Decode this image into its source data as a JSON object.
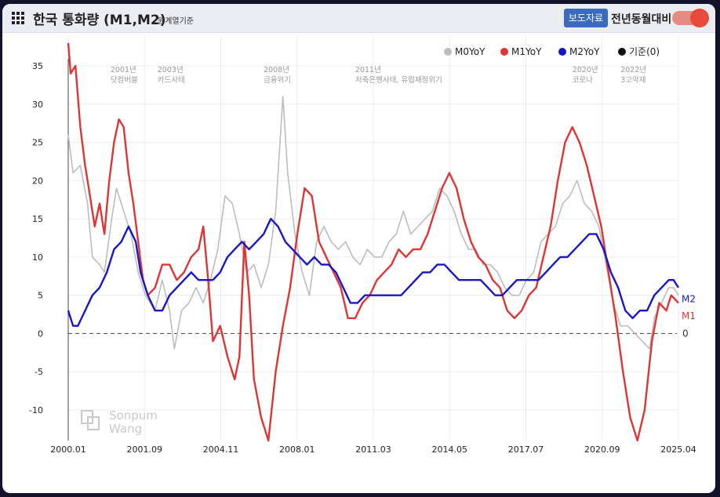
{
  "header": {
    "title": "한국 통화량 (M1,M2)",
    "subtitle": "원계열기준",
    "press_button": "보도자료",
    "toggle_label": "전년동월대비"
  },
  "watermark": {
    "line1": "Sonpum",
    "line2": "Wang"
  },
  "colors": {
    "M0": "#bdbdbd",
    "M1": "#e03434",
    "M2": "#1616c8",
    "baseline": "#555555"
  },
  "chart_data": {
    "type": "line",
    "x_ticks": [
      "2000.01",
      "2001.09",
      "2004.11",
      "2008.01",
      "2011.03",
      "2014.05",
      "2017.07",
      "2020.09",
      "2025.04"
    ],
    "y_ticks": [
      -10,
      -5,
      0,
      5,
      10,
      15,
      20,
      25,
      30,
      35
    ],
    "ylim": [
      -14,
      39
    ],
    "xlim": [
      2000.0,
      2025.3
    ],
    "legend": [
      "M0YoY",
      "M1YoY",
      "M2YoY",
      "기준(0)"
    ],
    "legend_position": "top-right",
    "end_labels": {
      "M1": "M1",
      "M2": "M2",
      "baseline": "0"
    },
    "events": [
      {
        "year": "2001년",
        "label": "닷컴버블",
        "x": 2001.75
      },
      {
        "year": "2003년",
        "label": "카드사태",
        "x": 2003.7
      },
      {
        "year": "2008년",
        "label": "금융위기",
        "x": 2008.1
      },
      {
        "year": "2011년",
        "label": "저축은행사태, 유럽재정위기",
        "x": 2011.9
      },
      {
        "year": "2020년",
        "label": "코로나",
        "x": 2020.9
      },
      {
        "year": "2022년",
        "label": "3고악재",
        "x": 2022.9
      }
    ],
    "series": [
      {
        "name": "M0YoY",
        "points": [
          [
            2000.0,
            26
          ],
          [
            2000.2,
            21
          ],
          [
            2000.5,
            22
          ],
          [
            2000.8,
            17
          ],
          [
            2001.0,
            10
          ],
          [
            2001.3,
            9
          ],
          [
            2001.5,
            8
          ],
          [
            2001.8,
            15
          ],
          [
            2002.0,
            19
          ],
          [
            2002.3,
            16
          ],
          [
            2002.6,
            13
          ],
          [
            2002.9,
            8
          ],
          [
            2003.2,
            5
          ],
          [
            2003.6,
            3
          ],
          [
            2003.9,
            7
          ],
          [
            2004.2,
            3
          ],
          [
            2004.4,
            -2
          ],
          [
            2004.7,
            3
          ],
          [
            2005.0,
            4
          ],
          [
            2005.3,
            6
          ],
          [
            2005.6,
            4
          ],
          [
            2005.9,
            7
          ],
          [
            2006.2,
            11
          ],
          [
            2006.5,
            18
          ],
          [
            2006.8,
            17
          ],
          [
            2007.1,
            13
          ],
          [
            2007.4,
            8
          ],
          [
            2007.7,
            9
          ],
          [
            2008.0,
            6
          ],
          [
            2008.3,
            9
          ],
          [
            2008.6,
            16
          ],
          [
            2008.9,
            31
          ],
          [
            2009.1,
            21
          ],
          [
            2009.4,
            13
          ],
          [
            2009.7,
            8
          ],
          [
            2010.0,
            5
          ],
          [
            2010.3,
            12
          ],
          [
            2010.6,
            14
          ],
          [
            2010.9,
            12
          ],
          [
            2011.2,
            11
          ],
          [
            2011.5,
            12
          ],
          [
            2011.8,
            10
          ],
          [
            2012.1,
            9
          ],
          [
            2012.4,
            11
          ],
          [
            2012.7,
            10
          ],
          [
            2013.0,
            10
          ],
          [
            2013.3,
            12
          ],
          [
            2013.6,
            13
          ],
          [
            2013.9,
            16
          ],
          [
            2014.2,
            13
          ],
          [
            2014.5,
            14
          ],
          [
            2014.8,
            15
          ],
          [
            2015.1,
            16
          ],
          [
            2015.4,
            19
          ],
          [
            2015.7,
            18
          ],
          [
            2016.0,
            16
          ],
          [
            2016.3,
            13
          ],
          [
            2016.6,
            11
          ],
          [
            2016.9,
            11
          ],
          [
            2017.2,
            9
          ],
          [
            2017.5,
            9
          ],
          [
            2017.8,
            8
          ],
          [
            2018.1,
            6
          ],
          [
            2018.4,
            5
          ],
          [
            2018.7,
            5
          ],
          [
            2019.0,
            7
          ],
          [
            2019.3,
            8
          ],
          [
            2019.6,
            12
          ],
          [
            2019.9,
            13
          ],
          [
            2020.2,
            14
          ],
          [
            2020.5,
            17
          ],
          [
            2020.8,
            18
          ],
          [
            2021.1,
            20
          ],
          [
            2021.4,
            17
          ],
          [
            2021.7,
            16
          ],
          [
            2022.0,
            14
          ],
          [
            2022.3,
            9
          ],
          [
            2022.6,
            4
          ],
          [
            2022.9,
            1
          ],
          [
            2023.2,
            1
          ],
          [
            2023.5,
            0
          ],
          [
            2023.8,
            -1
          ],
          [
            2024.1,
            -2
          ],
          [
            2024.3,
            2
          ],
          [
            2024.6,
            4
          ],
          [
            2024.9,
            6
          ],
          [
            2025.1,
            6
          ],
          [
            2025.3,
            5
          ]
        ]
      },
      {
        "name": "M1YoY",
        "points": [
          [
            2000.0,
            38
          ],
          [
            2000.1,
            34
          ],
          [
            2000.3,
            35
          ],
          [
            2000.5,
            27
          ],
          [
            2000.7,
            22
          ],
          [
            2000.9,
            18
          ],
          [
            2001.1,
            14
          ],
          [
            2001.3,
            17
          ],
          [
            2001.5,
            13
          ],
          [
            2001.7,
            20
          ],
          [
            2001.9,
            25
          ],
          [
            2002.1,
            28
          ],
          [
            2002.3,
            27
          ],
          [
            2002.5,
            21
          ],
          [
            2002.7,
            17
          ],
          [
            2002.9,
            12
          ],
          [
            2003.1,
            7
          ],
          [
            2003.3,
            5
          ],
          [
            2003.6,
            6
          ],
          [
            2003.9,
            9
          ],
          [
            2004.2,
            9
          ],
          [
            2004.5,
            7
          ],
          [
            2004.8,
            8
          ],
          [
            2005.1,
            10
          ],
          [
            2005.4,
            11
          ],
          [
            2005.6,
            14
          ],
          [
            2005.8,
            7
          ],
          [
            2006.0,
            -1
          ],
          [
            2006.3,
            1
          ],
          [
            2006.6,
            -3
          ],
          [
            2006.9,
            -6
          ],
          [
            2007.1,
            -3
          ],
          [
            2007.3,
            12
          ],
          [
            2007.5,
            5
          ],
          [
            2007.7,
            -6
          ],
          [
            2008.0,
            -11
          ],
          [
            2008.3,
            -14
          ],
          [
            2008.6,
            -5
          ],
          [
            2008.9,
            1
          ],
          [
            2009.2,
            6
          ],
          [
            2009.5,
            13
          ],
          [
            2009.8,
            19
          ],
          [
            2010.1,
            18
          ],
          [
            2010.4,
            12
          ],
          [
            2010.7,
            10
          ],
          [
            2011.0,
            8
          ],
          [
            2011.3,
            6
          ],
          [
            2011.6,
            2
          ],
          [
            2011.9,
            2
          ],
          [
            2012.2,
            4
          ],
          [
            2012.5,
            5
          ],
          [
            2012.8,
            7
          ],
          [
            2013.1,
            8
          ],
          [
            2013.4,
            9
          ],
          [
            2013.7,
            11
          ],
          [
            2014.0,
            10
          ],
          [
            2014.3,
            11
          ],
          [
            2014.6,
            11
          ],
          [
            2014.9,
            13
          ],
          [
            2015.2,
            16
          ],
          [
            2015.5,
            19
          ],
          [
            2015.8,
            21
          ],
          [
            2016.1,
            19
          ],
          [
            2016.4,
            15
          ],
          [
            2016.7,
            12
          ],
          [
            2017.0,
            10
          ],
          [
            2017.3,
            9
          ],
          [
            2017.6,
            7
          ],
          [
            2017.9,
            6
          ],
          [
            2018.2,
            3
          ],
          [
            2018.5,
            2
          ],
          [
            2018.8,
            3
          ],
          [
            2019.1,
            5
          ],
          [
            2019.4,
            6
          ],
          [
            2019.7,
            10
          ],
          [
            2020.0,
            14
          ],
          [
            2020.3,
            20
          ],
          [
            2020.6,
            25
          ],
          [
            2020.9,
            27
          ],
          [
            2021.2,
            25
          ],
          [
            2021.5,
            22
          ],
          [
            2021.8,
            18
          ],
          [
            2022.1,
            14
          ],
          [
            2022.4,
            8
          ],
          [
            2022.7,
            2
          ],
          [
            2023.0,
            -5
          ],
          [
            2023.3,
            -11
          ],
          [
            2023.6,
            -14
          ],
          [
            2023.9,
            -10
          ],
          [
            2024.2,
            -1
          ],
          [
            2024.5,
            4
          ],
          [
            2024.8,
            3
          ],
          [
            2025.0,
            5
          ],
          [
            2025.3,
            4
          ]
        ]
      },
      {
        "name": "M2YoY",
        "points": [
          [
            2000.0,
            3
          ],
          [
            2000.2,
            1
          ],
          [
            2000.4,
            1
          ],
          [
            2000.7,
            3
          ],
          [
            2001.0,
            5
          ],
          [
            2001.3,
            6
          ],
          [
            2001.6,
            8
          ],
          [
            2001.9,
            11
          ],
          [
            2002.2,
            12
          ],
          [
            2002.5,
            14
          ],
          [
            2002.8,
            12
          ],
          [
            2003.0,
            8
          ],
          [
            2003.3,
            5
          ],
          [
            2003.6,
            3
          ],
          [
            2003.9,
            3
          ],
          [
            2004.2,
            5
          ],
          [
            2004.5,
            6
          ],
          [
            2004.8,
            7
          ],
          [
            2005.1,
            8
          ],
          [
            2005.4,
            7
          ],
          [
            2005.7,
            7
          ],
          [
            2006.0,
            7
          ],
          [
            2006.3,
            8
          ],
          [
            2006.6,
            10
          ],
          [
            2006.9,
            11
          ],
          [
            2007.2,
            12
          ],
          [
            2007.5,
            11
          ],
          [
            2007.8,
            12
          ],
          [
            2008.1,
            13
          ],
          [
            2008.4,
            15
          ],
          [
            2008.7,
            14
          ],
          [
            2009.0,
            12
          ],
          [
            2009.3,
            11
          ],
          [
            2009.6,
            10
          ],
          [
            2009.9,
            9
          ],
          [
            2010.2,
            10
          ],
          [
            2010.5,
            9
          ],
          [
            2010.8,
            9
          ],
          [
            2011.1,
            8
          ],
          [
            2011.4,
            6
          ],
          [
            2011.7,
            4
          ],
          [
            2012.0,
            4
          ],
          [
            2012.3,
            5
          ],
          [
            2012.6,
            5
          ],
          [
            2012.9,
            5
          ],
          [
            2013.2,
            5
          ],
          [
            2013.5,
            5
          ],
          [
            2013.8,
            5
          ],
          [
            2014.1,
            6
          ],
          [
            2014.4,
            7
          ],
          [
            2014.7,
            8
          ],
          [
            2015.0,
            8
          ],
          [
            2015.3,
            9
          ],
          [
            2015.6,
            9
          ],
          [
            2015.9,
            8
          ],
          [
            2016.2,
            7
          ],
          [
            2016.5,
            7
          ],
          [
            2016.8,
            7
          ],
          [
            2017.1,
            7
          ],
          [
            2017.4,
            6
          ],
          [
            2017.7,
            5
          ],
          [
            2018.0,
            5
          ],
          [
            2018.3,
            6
          ],
          [
            2018.6,
            7
          ],
          [
            2018.9,
            7
          ],
          [
            2019.2,
            7
          ],
          [
            2019.5,
            7
          ],
          [
            2019.8,
            8
          ],
          [
            2020.1,
            9
          ],
          [
            2020.4,
            10
          ],
          [
            2020.7,
            10
          ],
          [
            2021.0,
            11
          ],
          [
            2021.3,
            12
          ],
          [
            2021.6,
            13
          ],
          [
            2021.9,
            13
          ],
          [
            2022.2,
            11
          ],
          [
            2022.5,
            8
          ],
          [
            2022.8,
            6
          ],
          [
            2023.1,
            3
          ],
          [
            2023.4,
            2
          ],
          [
            2023.7,
            3
          ],
          [
            2024.0,
            3
          ],
          [
            2024.3,
            5
          ],
          [
            2024.6,
            6
          ],
          [
            2024.9,
            7
          ],
          [
            2025.1,
            7
          ],
          [
            2025.3,
            6
          ]
        ]
      }
    ]
  }
}
